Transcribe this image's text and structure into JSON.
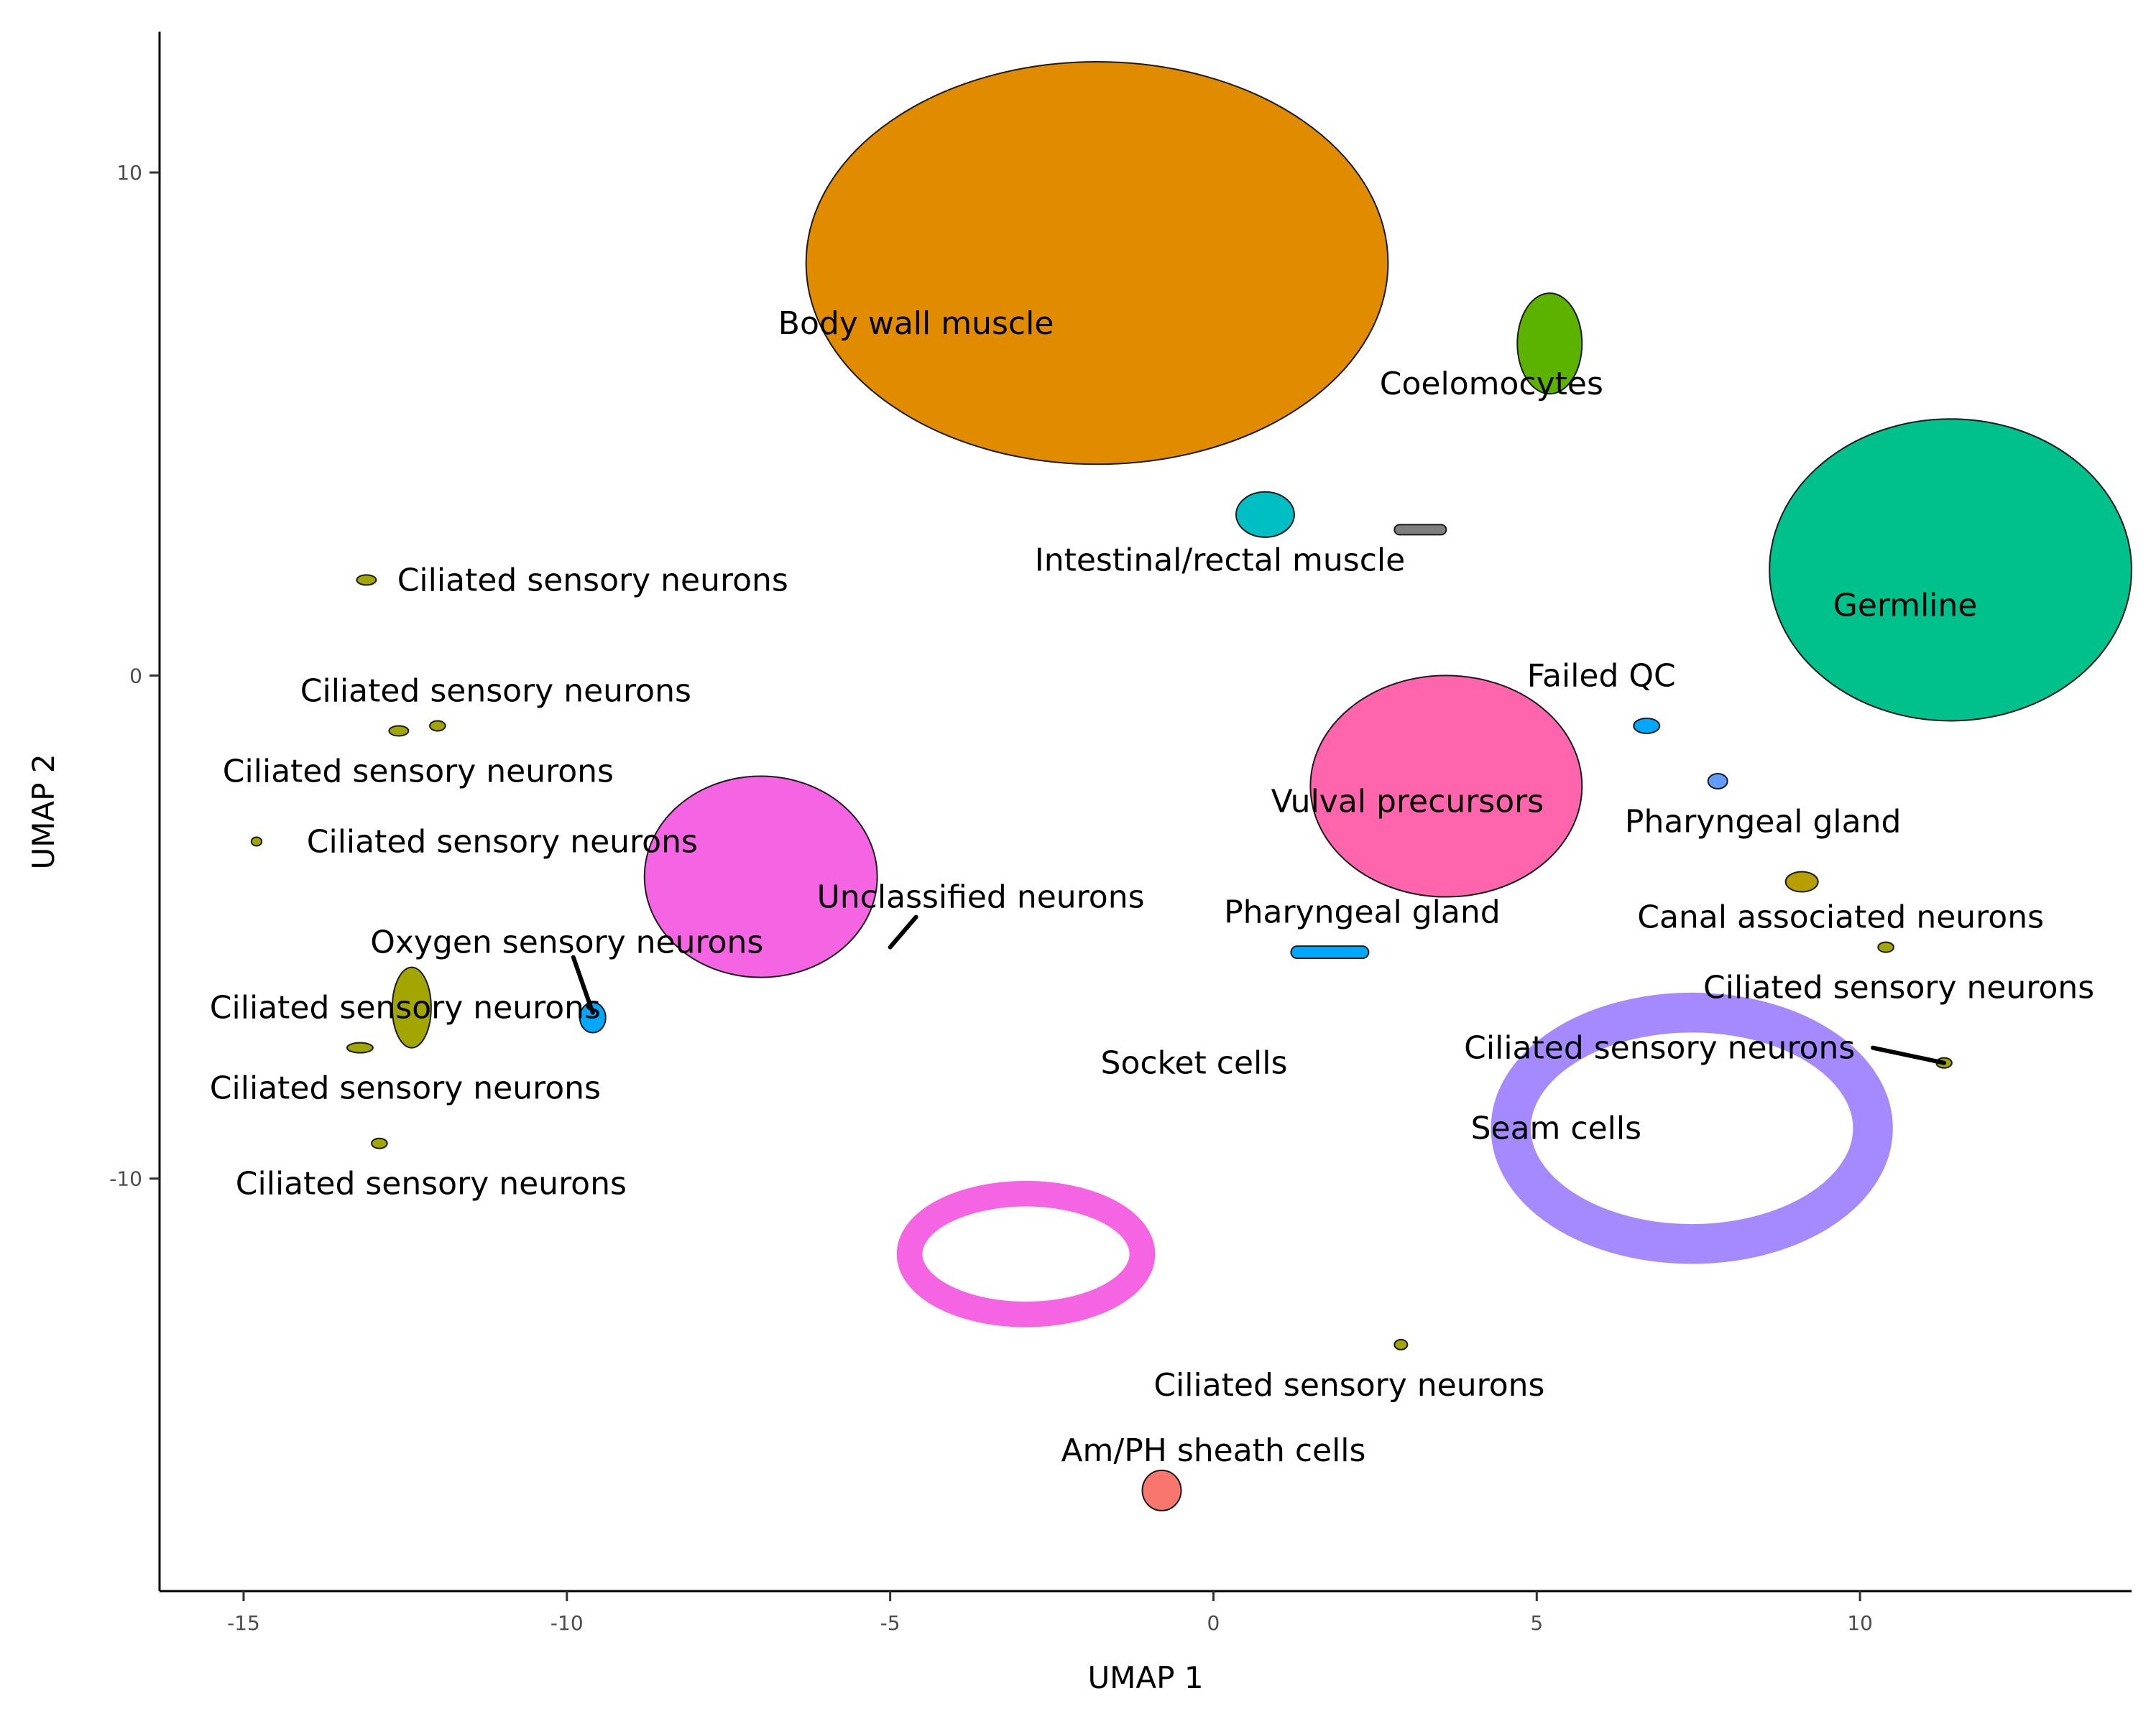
{
  "chart_data": {
    "type": "scatter",
    "xlabel": "UMAP 1",
    "ylabel": "UMAP 2",
    "xlim": [
      -16.3,
      14.2
    ],
    "ylim": [
      -18.2,
      12.8
    ],
    "x_ticks": [
      -15,
      -10,
      -5,
      0,
      5,
      10
    ],
    "y_ticks": [
      -10,
      0,
      10
    ],
    "x_tick_labels": [
      "-15",
      "-10",
      "-5",
      "0",
      "5",
      "10"
    ],
    "y_tick_labels": [
      "-10",
      "0",
      "10"
    ],
    "grid": false,
    "legend": "none",
    "clusters": [
      {
        "label": "Body wall muscle",
        "color": "#E08B00",
        "shape": "blob",
        "x": -1.8,
        "y": 8.2,
        "rx": 4.5,
        "ry": 4.0,
        "label_x": -4.6,
        "label_y": 7.0
      },
      {
        "label": "Coelomocytes",
        "color": "#5BB300",
        "shape": "blob",
        "x": 5.2,
        "y": 6.6,
        "rx": 0.5,
        "ry": 1.0,
        "label_x": 4.3,
        "label_y": 5.8
      },
      {
        "label": "Intestinal/rectal muscle",
        "color": "#00BFC4",
        "shape": "blob",
        "x": 0.8,
        "y": 3.2,
        "rx": 0.45,
        "ry": 0.45,
        "label_x": 0.1,
        "label_y": 2.3
      },
      {
        "label": "Germline",
        "color": "#00C08B",
        "shape": "blob",
        "x": 11.4,
        "y": 2.1,
        "rx": 2.8,
        "ry": 3.0,
        "label_x": 10.7,
        "label_y": 1.4
      },
      {
        "label": "Failed QC",
        "color": "#00A9FF",
        "shape": "blob",
        "x": 6.7,
        "y": -1.0,
        "rx": 0.2,
        "ry": 0.15,
        "label_x": 6.0,
        "label_y": 0.0
      },
      {
        "label": "Vulval precursors",
        "color": "#FF65AC",
        "shape": "blob",
        "x": 3.6,
        "y": -2.2,
        "rx": 2.1,
        "ry": 2.2,
        "label_x": 3.0,
        "label_y": -2.5
      },
      {
        "label": "Pharyngeal gland",
        "color": "#619CFF",
        "shape": "blob",
        "x": 7.8,
        "y": -2.1,
        "rx": 0.15,
        "ry": 0.15,
        "label_x": 8.5,
        "label_y": -2.9
      },
      {
        "label": "Canal associated neurons",
        "color": "#B79F00",
        "shape": "blob",
        "x": 9.1,
        "y": -4.1,
        "rx": 0.25,
        "ry": 0.2,
        "label_x": 9.7,
        "label_y": -4.8
      },
      {
        "label": "Pharyngeal gland",
        "color": "#00A9FF",
        "shape": "bar",
        "x": 1.8,
        "y": -5.5,
        "rx": 0.6,
        "ry": 0.12,
        "label_x": 2.3,
        "label_y": -4.7
      },
      {
        "label": "Unclassified neurons",
        "color": "#F564E3",
        "shape": "blob",
        "x": -7.0,
        "y": -4.0,
        "rx": 1.8,
        "ry": 2.0,
        "label_x": -3.6,
        "label_y": -4.4
      },
      {
        "label": "Socket cells",
        "color": "#F564E3",
        "shape": "ring",
        "x": -2.9,
        "y": -11.5,
        "rx": 1.8,
        "ry": 1.2,
        "label_x": -0.3,
        "label_y": -7.7
      },
      {
        "label": "Seam cells",
        "color": "#A58AFF",
        "shape": "ring",
        "x": 7.4,
        "y": -9.0,
        "rx": 2.8,
        "ry": 2.3,
        "label_x": 5.3,
        "label_y": -9.0
      },
      {
        "label": "Am/PH sheath cells",
        "color": "#F8766D",
        "shape": "blob",
        "x": -0.8,
        "y": -16.2,
        "rx": 0.3,
        "ry": 0.4,
        "label_x": 0.0,
        "label_y": -15.4
      },
      {
        "label": "Oxygen sensory neurons",
        "color": "#00A9FF",
        "shape": "blob",
        "x": -9.6,
        "y": -6.8,
        "rx": 0.2,
        "ry": 0.3,
        "label_x": -10.0,
        "label_y": -5.3
      },
      {
        "label": "Ciliated sensory neurons",
        "color": "#A3A500",
        "shape": "blob",
        "x": -13.1,
        "y": 1.9,
        "rx": 0.15,
        "ry": 0.1,
        "label_x": -9.6,
        "label_y": 1.9
      },
      {
        "label": "Ciliated sensory neurons",
        "color": "#A3A500",
        "shape": "blob",
        "x": -12.6,
        "y": -1.1,
        "rx": 0.15,
        "ry": 0.1,
        "label_x": -11.1,
        "label_y": -0.3
      },
      {
        "label": "Ciliated sensory neurons",
        "color": "#A3A500",
        "shape": "blob",
        "x": -12.0,
        "y": -1.0,
        "rx": 0.12,
        "ry": 0.1,
        "label_x": -12.3,
        "label_y": -1.9
      },
      {
        "label": "Ciliated sensory neurons",
        "color": "#A3A500",
        "shape": "blob",
        "x": -14.8,
        "y": -3.3,
        "rx": 0.08,
        "ry": 0.08,
        "label_x": -11.0,
        "label_y": -3.3
      },
      {
        "label": "Ciliated sensory neurons",
        "color": "#A3A500",
        "shape": "blob",
        "x": -12.4,
        "y": -6.6,
        "rx": 0.3,
        "ry": 0.8,
        "label_x": -12.5,
        "label_y": -6.6
      },
      {
        "label": "Ciliated sensory neurons",
        "color": "#A3A500",
        "shape": "blob",
        "x": -13.2,
        "y": -7.4,
        "rx": 0.2,
        "ry": 0.1,
        "label_x": -12.5,
        "label_y": -8.2
      },
      {
        "label": "Ciliated sensory neurons",
        "color": "#A3A500",
        "shape": "blob",
        "x": -12.9,
        "y": -9.3,
        "rx": 0.12,
        "ry": 0.1,
        "label_x": -12.1,
        "label_y": -10.1
      },
      {
        "label": "Ciliated sensory neurons",
        "color": "#A3A500",
        "shape": "blob",
        "x": 11.3,
        "y": -7.7,
        "rx": 0.12,
        "ry": 0.1,
        "label_x": 10.6,
        "label_y": -6.2
      },
      {
        "label": "Ciliated sensory neurons",
        "color": "#A3A500",
        "shape": "blob",
        "x": 10.4,
        "y": -5.4,
        "rx": 0.12,
        "ry": 0.1,
        "label_x": 6.9,
        "label_y": -7.4
      },
      {
        "label": "Ciliated sensory neurons",
        "color": "#A3A500",
        "shape": "blob",
        "x": 2.9,
        "y": -13.3,
        "rx": 0.1,
        "ry": 0.1,
        "label_x": 2.1,
        "label_y": -14.1
      },
      {
        "label": "",
        "color": "#7F7F7F",
        "shape": "bar",
        "x": 3.2,
        "y": 2.9,
        "rx": 0.4,
        "ry": 0.1
      }
    ],
    "leaders": [
      {
        "from": [
          -9.9,
          -5.6
        ],
        "to": [
          -9.6,
          -6.7
        ]
      },
      {
        "from": [
          -4.6,
          -4.8
        ],
        "to": [
          -5.0,
          -5.4
        ]
      },
      {
        "from": [
          10.2,
          -7.4
        ],
        "to": [
          11.3,
          -7.7
        ]
      }
    ]
  }
}
